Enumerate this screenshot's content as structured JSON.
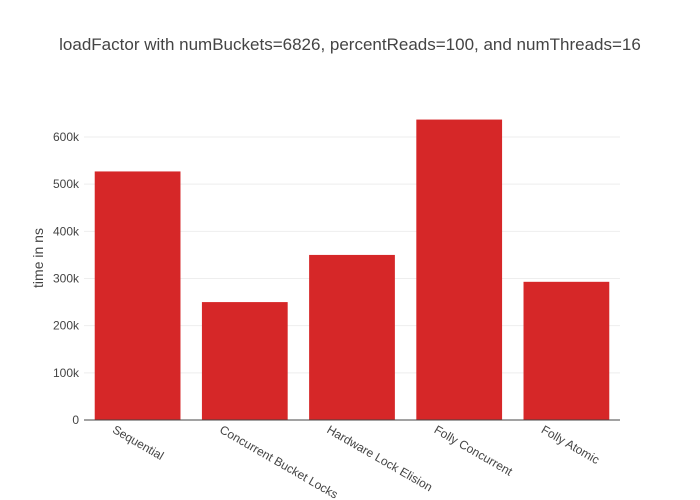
{
  "chart_data": {
    "type": "bar",
    "title": "loadFactor with numBuckets=6826, percentReads=100, and numThreads=16",
    "xlabel": "",
    "ylabel": "time in ns",
    "categories": [
      "Sequential",
      "Concurrent Bucket Locks",
      "Hardware Lock Elision",
      "Folly Concurrent",
      "Folly Atomic"
    ],
    "values": [
      527000,
      250000,
      350000,
      637000,
      293000
    ],
    "ylim": [
      0,
      670000
    ],
    "yticks": [
      0,
      100000,
      200000,
      300000,
      400000,
      500000,
      600000
    ],
    "ytick_labels": [
      "0",
      "100k",
      "200k",
      "300k",
      "400k",
      "500k",
      "600k"
    ],
    "bar_color": "#d62728",
    "grid": true,
    "legend": "none"
  }
}
